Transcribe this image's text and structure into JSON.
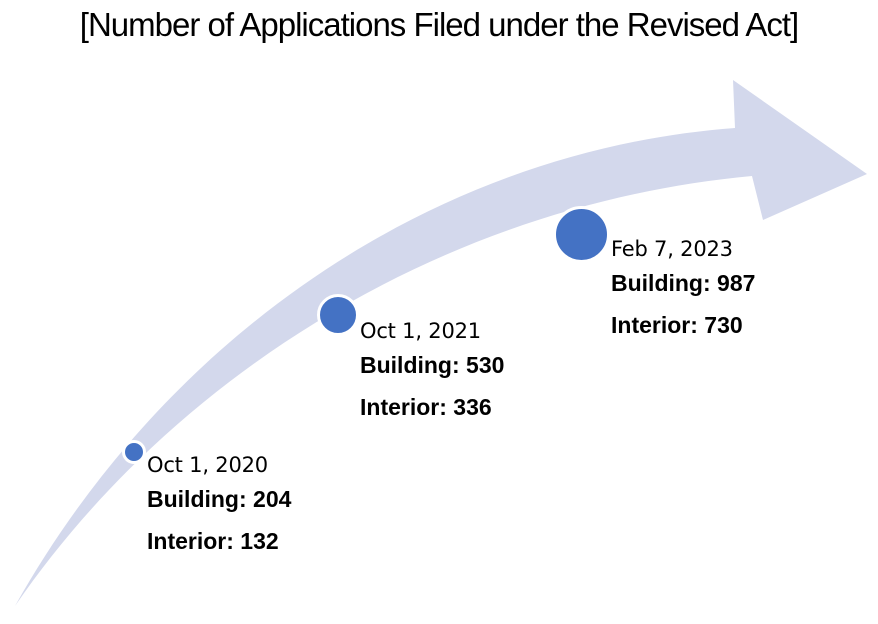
{
  "title": "[Number of Applications Filed under the Revised Act]",
  "colors": {
    "arrow": "#d3d8ec",
    "dot": "#4472c4",
    "dot_border": "#ffffff"
  },
  "milestones": [
    {
      "date": "Oct 1, 2020",
      "building": "Building: 204",
      "interior": "Interior: 132"
    },
    {
      "date": "Oct 1, 2021",
      "building": "Building: 530",
      "interior": "Interior: 336"
    },
    {
      "date": "Feb 7, 2023",
      "building": "Building: 987",
      "interior": "Interior: 730"
    }
  ]
}
